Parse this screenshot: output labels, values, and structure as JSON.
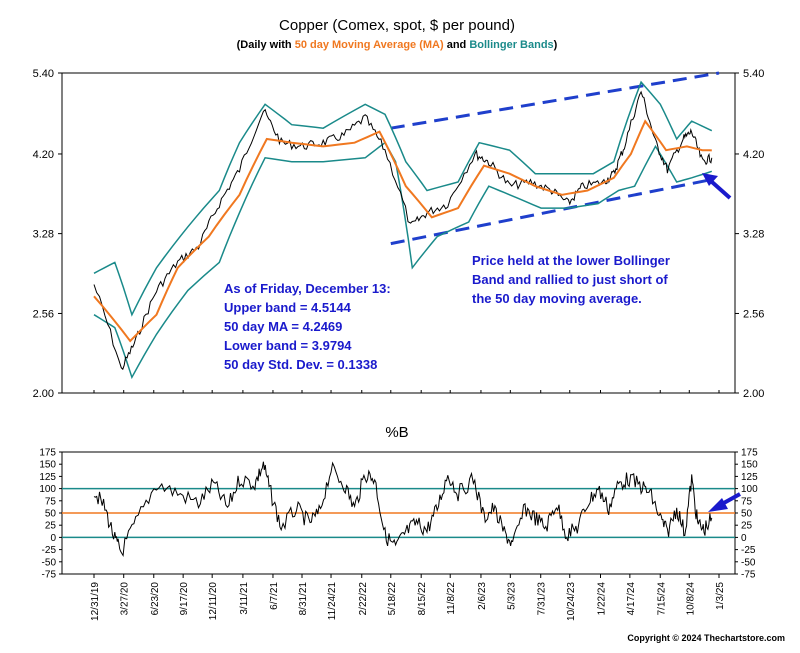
{
  "chart_data": [
    {
      "type": "line",
      "title": "Copper (Comex, spot, $ per pound)",
      "subtitle": {
        "prefix": "(Daily with ",
        "ma": "50 day Moving Average (MA)",
        "middle": " and ",
        "bb": "Bollinger Bands",
        "suffix": ")"
      },
      "y_scale": "log",
      "ylim": [
        2.0,
        5.4
      ],
      "y_ticks": [
        "5.40",
        "4.20",
        "3.28",
        "2.56",
        "2.00"
      ],
      "x_ticks": [
        "12/31/19",
        "3/27/20",
        "6/23/20",
        "9/17/20",
        "12/11/20",
        "3/11/21",
        "6/7/21",
        "8/31/21",
        "11/24/21",
        "2/22/22",
        "5/18/22",
        "8/15/22",
        "11/8/22",
        "2/6/23",
        "5/3/23",
        "7/31/23",
        "10/24/23",
        "1/22/24",
        "4/17/24",
        "7/15/24",
        "10/8/24",
        "1/3/25"
      ],
      "grid": false,
      "colors": {
        "price": "#000000",
        "ma": "#f07820",
        "bands": "#1a8a8a",
        "annotation": "#1a1acc",
        "channel": "#1f3fcc"
      },
      "series": [
        {
          "name": "Price",
          "x": [
            "12/31/19",
            "3/20/20",
            "5/1/20",
            "7/1/20",
            "9/1/20",
            "11/1/20",
            "1/1/21",
            "3/1/21",
            "5/10/21",
            "7/1/21",
            "9/1/21",
            "11/1/21",
            "1/1/22",
            "3/4/22",
            "5/1/22",
            "7/15/22",
            "9/1/22",
            "11/1/22",
            "1/20/23",
            "3/1/23",
            "5/1/23",
            "7/1/23",
            "9/1/23",
            "10/20/23",
            "12/1/23",
            "2/1/24",
            "3/1/24",
            "4/1/24",
            "5/20/24",
            "7/1/24",
            "8/5/24",
            "9/20/24",
            "10/15/24",
            "11/15/24",
            "12/13/24"
          ],
          "values": [
            2.8,
            2.15,
            2.35,
            2.75,
            3.0,
            3.15,
            3.6,
            4.0,
            4.8,
            4.35,
            4.3,
            4.35,
            4.45,
            4.7,
            4.25,
            3.35,
            3.5,
            3.6,
            4.2,
            4.1,
            3.8,
            3.85,
            3.75,
            3.6,
            3.8,
            3.85,
            3.95,
            4.3,
            5.1,
            4.35,
            4.0,
            4.4,
            4.5,
            4.1,
            4.15
          ]
        },
        {
          "name": "50 day MA",
          "x": [
            "12/31/19",
            "4/15/20",
            "7/1/20",
            "9/1/20",
            "12/1/20",
            "3/1/21",
            "5/20/21",
            "8/1/21",
            "11/1/21",
            "2/1/22",
            "4/15/22",
            "7/1/22",
            "9/15/22",
            "12/1/22",
            "2/15/23",
            "5/1/23",
            "7/15/23",
            "10/1/23",
            "12/15/23",
            "3/1/24",
            "4/20/24",
            "6/1/24",
            "8/1/24",
            "10/1/24",
            "11/15/24",
            "12/13/24"
          ],
          "values": [
            2.7,
            2.35,
            2.55,
            2.95,
            3.25,
            3.7,
            4.4,
            4.35,
            4.3,
            4.35,
            4.5,
            3.8,
            3.45,
            3.55,
            4.05,
            3.95,
            3.8,
            3.7,
            3.75,
            3.9,
            4.2,
            4.65,
            4.25,
            4.3,
            4.25,
            4.2469
          ]
        },
        {
          "name": "Upper band",
          "x": [
            "12/31/19",
            "3/1/20",
            "4/20/20",
            "7/1/20",
            "10/1/20",
            "1/1/21",
            "3/1/21",
            "5/15/21",
            "8/1/21",
            "11/1/21",
            "3/4/22",
            "5/1/22",
            "7/1/22",
            "9/1/22",
            "12/1/22",
            "2/1/23",
            "5/1/23",
            "7/15/23",
            "10/1/23",
            "1/1/24",
            "3/1/24",
            "5/20/24",
            "7/15/24",
            "9/1/24",
            "10/15/24",
            "12/13/24"
          ],
          "values": [
            2.9,
            3.0,
            2.55,
            2.95,
            3.35,
            3.75,
            4.35,
            4.9,
            4.6,
            4.55,
            4.9,
            4.75,
            4.1,
            3.75,
            3.85,
            4.35,
            4.25,
            3.95,
            3.95,
            3.95,
            4.1,
            5.25,
            4.9,
            4.4,
            4.65,
            4.5144
          ]
        },
        {
          "name": "Lower band",
          "x": [
            "12/31/19",
            "3/1/20",
            "4/20/20",
            "7/1/20",
            "10/1/20",
            "1/1/21",
            "3/1/21",
            "5/15/21",
            "8/1/21",
            "11/1/21",
            "3/4/22",
            "5/1/22",
            "6/1/22",
            "7/20/22",
            "10/1/22",
            "1/1/23",
            "3/1/23",
            "5/1/23",
            "8/1/23",
            "10/20/23",
            "1/15/24",
            "3/15/24",
            "5/1/24",
            "7/1/24",
            "9/1/24",
            "10/15/24",
            "12/13/24"
          ],
          "values": [
            2.55,
            2.45,
            2.1,
            2.4,
            2.75,
            3.0,
            3.5,
            4.15,
            4.1,
            4.1,
            4.15,
            4.35,
            4.1,
            2.95,
            3.25,
            3.4,
            3.8,
            3.7,
            3.55,
            3.55,
            3.6,
            3.75,
            3.8,
            4.3,
            3.85,
            3.9,
            3.9794
          ]
        }
      ],
      "trend_lines": [
        {
          "name": "Upper channel",
          "x": [
            "5/18/22",
            "1/3/25"
          ],
          "values": [
            4.55,
            5.4
          ]
        },
        {
          "name": "Lower channel",
          "x": [
            "5/18/22",
            "12/13/24"
          ],
          "values": [
            3.18,
            3.88
          ]
        }
      ],
      "annotations": [
        {
          "lines": [
            "As of Friday, December 13:",
            "Upper band = 4.5144",
            "50 day MA = 4.2469",
            "Lower band = 3.9794",
            "50 day Std. Dev. = 0.1338"
          ]
        },
        {
          "lines": [
            "Price held at the lower Bollinger",
            "Band and rallied to just short of",
            "the 50 day moving average."
          ]
        }
      ]
    },
    {
      "type": "line",
      "title": "%B",
      "ylim": [
        -75,
        175
      ],
      "y_ticks": [
        "175",
        "150",
        "125",
        "100",
        "75",
        "50",
        "25",
        "0",
        "-25",
        "-50",
        "-75"
      ],
      "reference_lines": [
        100,
        50,
        0
      ],
      "series": [
        {
          "name": "%B",
          "x": [
            "12/31/19",
            "2/1/20",
            "3/1/20",
            "3/20/20",
            "5/1/20",
            "7/1/20",
            "9/1/20",
            "11/1/20",
            "12/15/20",
            "1/25/21",
            "3/1/21",
            "4/15/21",
            "5/10/21",
            "6/1/21",
            "7/1/21",
            "8/15/21",
            "9/20/21",
            "10/20/21",
            "11/24/21",
            "1/1/22",
            "2/1/22",
            "3/4/22",
            "4/1/22",
            "5/1/22",
            "6/1/22",
            "7/1/22",
            "8/1/22",
            "9/1/22",
            "10/1/22",
            "11/1/22",
            "12/1/22",
            "1/15/23",
            "2/15/23",
            "3/15/23",
            "4/15/23",
            "5/10/23",
            "6/15/23",
            "7/15/23",
            "8/15/23",
            "9/15/23",
            "10/15/23",
            "11/15/23",
            "12/15/23",
            "1/15/24",
            "2/15/24",
            "3/15/24",
            "4/15/24",
            "5/20/24",
            "6/15/24",
            "7/15/24",
            "8/5/24",
            "9/1/24",
            "9/25/24",
            "10/15/24",
            "11/1/24",
            "11/20/24",
            "12/13/24"
          ],
          "values": [
            95,
            60,
            -5,
            -30,
            30,
            110,
            90,
            70,
            110,
            60,
            120,
            110,
            150,
            90,
            20,
            60,
            30,
            50,
            140,
            110,
            60,
            130,
            120,
            5,
            -20,
            10,
            30,
            15,
            60,
            130,
            90,
            120,
            40,
            60,
            10,
            -15,
            60,
            40,
            20,
            70,
            5,
            20,
            70,
            100,
            60,
            110,
            120,
            105,
            90,
            40,
            10,
            60,
            10,
            120,
            30,
            15,
            40
          ]
        }
      ]
    }
  ],
  "footer": {
    "copyright": "Copyright © 2024 Thechartstore.com"
  }
}
